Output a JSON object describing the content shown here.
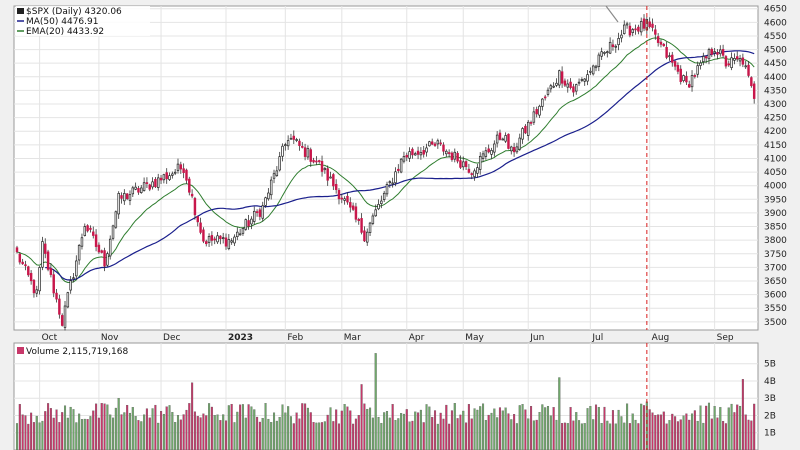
{
  "chart_data": {
    "type": "candlestick",
    "legend": {
      "symbol_label": "$SPX (Daily) 4320.06",
      "ma_label": "MA(50) 4476.91",
      "ema_label": "EMA(20) 4433.92",
      "volume_label": "Volume 2,115,719,168"
    },
    "colors": {
      "up": "#3a8a3a",
      "down": "#c8174b",
      "ma50": "#1a1f8c",
      "ema20": "#2e7d2e",
      "marker": "#d81e1e",
      "volume_up": "#6fa86a",
      "volume_down": "#c8386a"
    },
    "price_axis": {
      "ylim": [
        3470,
        4660
      ],
      "ticks": [
        "3500",
        "3550",
        "3600",
        "3650",
        "3700",
        "3750",
        "3800",
        "3850",
        "3900",
        "3950",
        "4000",
        "4050",
        "4100",
        "4150",
        "4200",
        "4250",
        "4300",
        "4350",
        "4400",
        "4450",
        "4500",
        "4550",
        "4600",
        "4650"
      ]
    },
    "volume_axis": {
      "ylim": [
        0,
        6.2
      ],
      "ticks": [
        "1B",
        "2B",
        "3B",
        "4B",
        "5B"
      ]
    },
    "x_axis": {
      "month_labels": [
        {
          "label": "Oct",
          "date": "2022-10-03",
          "bold": false
        },
        {
          "label": "Nov",
          "date": "2022-11-01",
          "bold": false
        },
        {
          "label": "Dec",
          "date": "2022-12-01",
          "bold": false
        },
        {
          "label": "2023",
          "date": "2023-01-03",
          "bold": true
        },
        {
          "label": "Feb",
          "date": "2023-02-01",
          "bold": false
        },
        {
          "label": "Mar",
          "date": "2023-03-01",
          "bold": false
        },
        {
          "label": "Apr",
          "date": "2023-04-03",
          "bold": false
        },
        {
          "label": "May",
          "date": "2023-05-01",
          "bold": false
        },
        {
          "label": "Jun",
          "date": "2023-06-01",
          "bold": false
        },
        {
          "label": "Jul",
          "date": "2023-07-03",
          "bold": false
        },
        {
          "label": "Aug",
          "date": "2023-08-01",
          "bold": false
        },
        {
          "label": "Sep",
          "date": "2023-09-01",
          "bold": false
        }
      ]
    },
    "marker_date": "2023-07-31",
    "anchors": [
      [
        "2022-09-21",
        3750
      ],
      [
        "2022-09-30",
        3600
      ],
      [
        "2022-10-04",
        3780
      ],
      [
        "2022-10-13",
        3500
      ],
      [
        "2022-10-25",
        3860
      ],
      [
        "2022-11-03",
        3720
      ],
      [
        "2022-11-10",
        3950
      ],
      [
        "2022-11-30",
        4020
      ],
      [
        "2022-12-13",
        4070
      ],
      [
        "2022-12-22",
        3800
      ],
      [
        "2023-01-05",
        3800
      ],
      [
        "2023-01-20",
        3920
      ],
      [
        "2023-02-02",
        4180
      ],
      [
        "2023-02-16",
        4090
      ],
      [
        "2023-03-01",
        3960
      ],
      [
        "2023-03-13",
        3820
      ],
      [
        "2023-03-31",
        4110
      ],
      [
        "2023-04-18",
        4150
      ],
      [
        "2023-05-04",
        4060
      ],
      [
        "2023-05-19",
        4190
      ],
      [
        "2023-05-24",
        4120
      ],
      [
        "2023-06-16",
        4410
      ],
      [
        "2023-06-23",
        4350
      ],
      [
        "2023-07-19",
        4570
      ],
      [
        "2023-07-31",
        4590
      ],
      [
        "2023-08-18",
        4370
      ],
      [
        "2023-09-01",
        4510
      ],
      [
        "2023-09-07",
        4450
      ],
      [
        "2023-09-15",
        4460
      ],
      [
        "2023-09-21",
        4320
      ]
    ],
    "volume_spikes": [
      [
        "2023-03-17",
        5.6
      ],
      [
        "2023-03-10",
        3.8
      ],
      [
        "2023-06-16",
        4.2
      ],
      [
        "2023-09-15",
        4.1
      ],
      [
        "2022-12-16",
        3.9
      ],
      [
        "2022-11-10",
        3.0
      ],
      [
        "2023-07-31",
        2.8
      ]
    ],
    "last_close": 4320.06,
    "last_volume": "2,115,719,168"
  }
}
